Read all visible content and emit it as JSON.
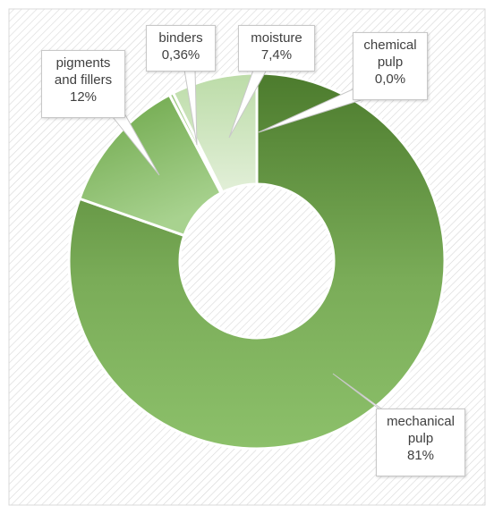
{
  "chart_data": {
    "type": "pie",
    "variant": "doughnut",
    "title": "",
    "slices": [
      {
        "name": "mechanical pulp",
        "value": 81,
        "label": "81%",
        "color": "#5b8f3c"
      },
      {
        "name": "pigments and fillers",
        "value": 12,
        "label": "12%",
        "color": "#8ec06c"
      },
      {
        "name": "binders",
        "value": 0.36,
        "label": "0,36%",
        "color": "#b8d9a4"
      },
      {
        "name": "moisture",
        "value": 7.4,
        "label": "7,4%",
        "color": "#d4e7c8"
      },
      {
        "name": "chemical pulp",
        "value": 0.0,
        "label": "0,0%",
        "color": "#4a7a2e"
      }
    ],
    "legend": "none",
    "data_labels": "callouts"
  },
  "callouts": {
    "mechanical_pulp": {
      "line1": "mechanical",
      "line2": "pulp",
      "value": "81%"
    },
    "pigments": {
      "line1": "pigments",
      "line2": "and fillers",
      "value": "12%"
    },
    "binders": {
      "line1": "binders",
      "value": "0,36%"
    },
    "moisture": {
      "line1": "moisture",
      "value": "7,4%"
    },
    "chemical_pulp": {
      "line1": "chemical",
      "line2": "pulp",
      "value": "0,0%"
    }
  }
}
